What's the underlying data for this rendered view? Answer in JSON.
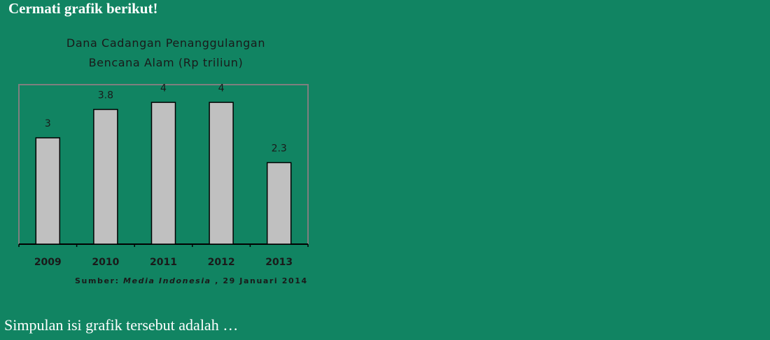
{
  "heading": "Cermati grafik berikut!",
  "question": "Simpulan isi grafik tersebut adalah …",
  "chart_data": {
    "type": "bar",
    "title": "Dana Cadangan Penanggulangan Bencana Alam (Rp triliun)",
    "categories": [
      "2009",
      "2010",
      "2011",
      "2012",
      "2013"
    ],
    "values": [
      3,
      3.8,
      4,
      4,
      2.3
    ],
    "color": "#c0c0c0",
    "ylim": [
      0,
      4.5
    ],
    "source_label": "Sumber:",
    "source_name": "Media Indonesia",
    "source_date": ", 29 Januari 2014"
  }
}
